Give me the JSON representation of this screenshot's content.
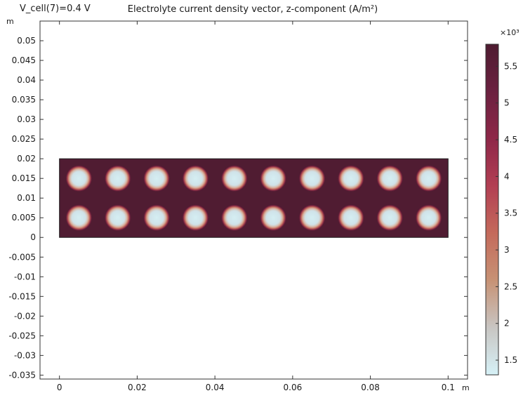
{
  "chart_data": {
    "type": "heatmap",
    "title": "Electrolyte current density vector, z-component (A/m²)",
    "subtitle": "V_cell(7)=0.4 V",
    "x_unit": "m",
    "y_unit": "m",
    "x_ticks": [
      "0",
      "0.02",
      "0.04",
      "0.06",
      "0.08",
      "0.1"
    ],
    "y_ticks": [
      "0.05",
      "0.045",
      "0.04",
      "0.035",
      "0.03",
      "0.025",
      "0.02",
      "0.015",
      "0.01",
      "0.005",
      "0",
      "-0.005",
      "-0.01",
      "-0.015",
      "-0.02",
      "-0.025",
      "-0.03",
      "-0.035"
    ],
    "xlim": [
      -0.005,
      0.105
    ],
    "ylim": [
      -0.036,
      0.055
    ],
    "grid": false,
    "domain": {
      "x": [
        0,
        0.1
      ],
      "y": [
        0,
        0.02
      ]
    },
    "spot_centers_x": [
      0.005,
      0.015,
      0.025,
      0.035,
      0.045,
      0.055,
      0.065,
      0.075,
      0.085,
      0.095
    ],
    "spot_centers_y": [
      0.015,
      0.005
    ],
    "spot_radius": 0.0033,
    "field_level_background": 5.75,
    "field_level_spot_center": 1.35,
    "colorbar": {
      "multiplier": "×10³",
      "ticks": [
        "5.5",
        "5",
        "4.5",
        "4",
        "3.5",
        "3",
        "2.5",
        "2",
        "1.5"
      ],
      "range": [
        1.3,
        5.8
      ],
      "colors": [
        "#d6f1f7",
        "#c8c5c2",
        "#c79275",
        "#c46a5b",
        "#b23f53",
        "#8e2748",
        "#6b2140",
        "#4e1c31"
      ]
    }
  }
}
